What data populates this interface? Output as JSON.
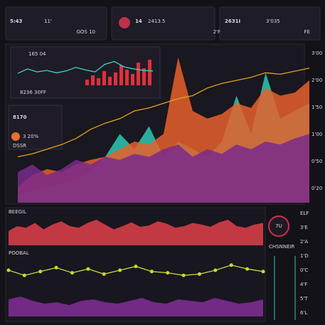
{
  "cards": [
    {
      "value": "5:43",
      "accent": "11'",
      "caption": "GOS 10"
    },
    {
      "value": "14",
      "accent": "2413.5",
      "caption": "2'F"
    },
    {
      "value": "2631I",
      "accent": "3'035",
      "caption": "FE"
    }
  ],
  "main_panel": {
    "inset": {
      "label": "165 04",
      "caption": "8236 30FF",
      "line_color": "#3fd6c8",
      "bar_color": "#e0303a",
      "line": [
        40,
        55,
        45,
        50,
        42,
        48,
        60,
        52,
        45,
        70,
        80,
        62,
        55,
        50,
        48
      ],
      "bars": [
        20,
        35,
        25,
        50,
        30,
        45,
        70,
        55,
        40,
        80,
        60,
        90
      ]
    },
    "stat": {
      "value": "8170",
      "sub": "3 20%",
      "tag": "DSSR"
    },
    "layers": [
      {
        "color": "#2bc9b4",
        "values": [
          5,
          8,
          10,
          12,
          15,
          20,
          30,
          45,
          35,
          50,
          30,
          40,
          35,
          30,
          40,
          70,
          45,
          85,
          55,
          60,
          65
        ]
      },
      {
        "color": "#e8602c",
        "values": [
          10,
          18,
          22,
          20,
          25,
          28,
          30,
          35,
          40,
          38,
          45,
          95,
          60,
          55,
          58,
          65,
          62,
          75,
          70,
          72,
          80
        ]
      },
      {
        "color": "#7a2a8c",
        "values": [
          20,
          25,
          18,
          22,
          28,
          25,
          30,
          28,
          32,
          30,
          35,
          38,
          30,
          35,
          32,
          38,
          35,
          40,
          38,
          42,
          45
        ]
      }
    ],
    "trend": {
      "color": "#e6a020",
      "values": [
        30,
        32,
        35,
        38,
        42,
        48,
        52,
        55,
        60,
        62,
        65,
        68,
        70,
        75,
        78,
        80,
        82,
        85,
        84,
        86,
        88
      ]
    },
    "axis_labels": [
      "3'00",
      "2'00",
      "1'50",
      "1'00",
      "0'50",
      "0'20"
    ]
  },
  "lower": {
    "red_title": "BEEGIL",
    "red_color": "#e0404a",
    "red": [
      45,
      60,
      55,
      70,
      50,
      65,
      75,
      60,
      55,
      70,
      80,
      65,
      50,
      60,
      72,
      58,
      62,
      75,
      68,
      55,
      60,
      70,
      65,
      58,
      72,
      80,
      60,
      55,
      65,
      70
    ],
    "dots_title": "POOBAL",
    "dots_color": "#c6d83a",
    "dots": [
      50,
      30,
      45,
      60,
      40,
      55,
      35,
      50,
      65,
      45,
      40,
      30,
      35,
      50,
      70,
      55,
      45
    ],
    "purple_color": "#8a2fa0",
    "purple": [
      60,
      70,
      55,
      45,
      50,
      40,
      55,
      60,
      50,
      45,
      55,
      65,
      50,
      45,
      60,
      55,
      50,
      65,
      55,
      45,
      50,
      60
    ]
  },
  "gauge": {
    "label": "7U",
    "caption": "CHSNNEIR"
  },
  "side_labels": [
    "ELF",
    "3'E",
    "2'A",
    "1'D",
    "0'C",
    "4'F",
    "5'T",
    "6'L"
  ]
}
